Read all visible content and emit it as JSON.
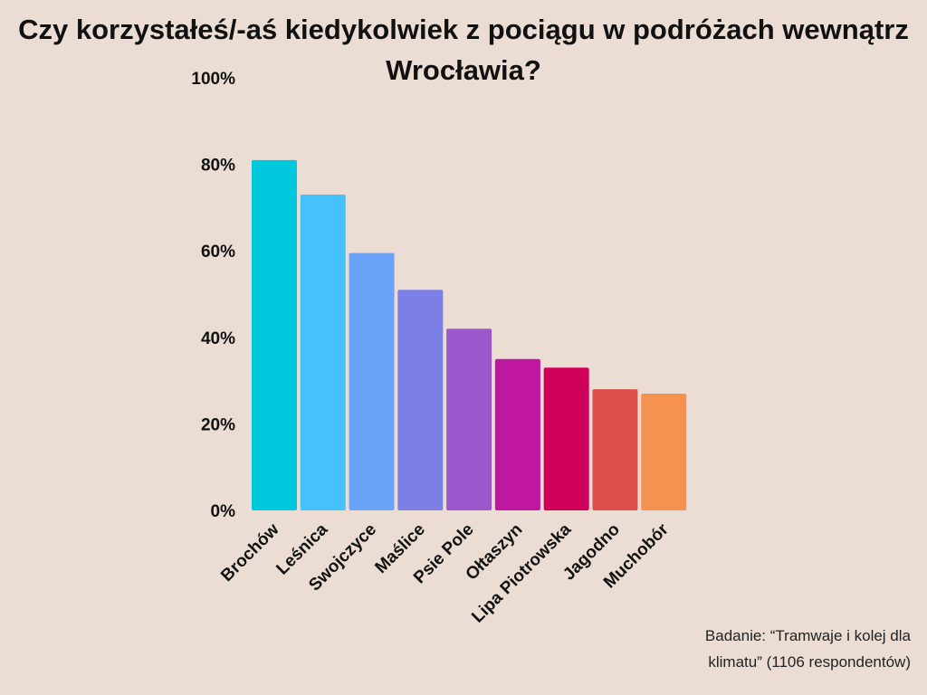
{
  "chart_data": {
    "type": "bar",
    "title": "Czy korzystałeś/-aś kiedykolwiek z pociągu w podróżach wewnątrz Wrocławia?",
    "categories": [
      "Brochów",
      "Leśnica",
      "Swojczyce",
      "Maślice",
      "Psie Pole",
      "Ołtaszyn",
      "Lipa Piotrowska",
      "Jagodno",
      "Muchobór"
    ],
    "values": [
      81,
      73,
      59.5,
      51,
      42,
      35,
      33,
      28,
      27
    ],
    "colors": [
      "#00c8dc",
      "#45c2fb",
      "#6aa3f8",
      "#7c80e4",
      "#9b58cd",
      "#bf179f",
      "#d0005a",
      "#dc5049",
      "#f5924f"
    ],
    "yticks": [
      "0%",
      "20%",
      "40%",
      "60%",
      "80%",
      "100%"
    ],
    "ylim": [
      0,
      100
    ],
    "grid": false,
    "legend": "none"
  },
  "footnote": {
    "line1": "Badanie: “Tramwaje i kolej dla",
    "line2": "klimatu” (1106 respondentów)"
  }
}
